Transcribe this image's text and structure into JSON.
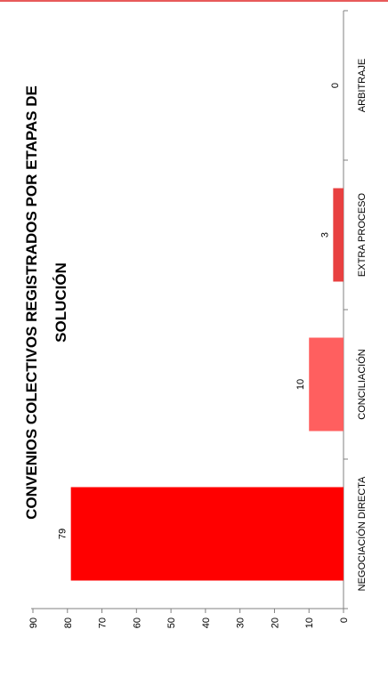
{
  "chart_data": {
    "type": "bar",
    "orientation": "rotated-90",
    "title_lines": [
      "CONVENIOS COLECTIVOS REGISTRADOS POR ETAPAS DE",
      "SOLUCIÓN"
    ],
    "categories": [
      "NEGOCIACIÓN DIRECTA",
      "CONCILIACIÓN",
      "EXTRA PROCESO",
      "ARBITRAJE"
    ],
    "values": [
      79,
      10,
      3,
      0
    ],
    "colors": [
      "#ff0000",
      "#ff5f5f",
      "#e84040",
      "#ff0000"
    ],
    "ylim": [
      0,
      90
    ],
    "yticks": [
      0,
      10,
      20,
      30,
      40,
      50,
      60,
      70,
      80,
      90
    ],
    "grid": false,
    "legend": "none"
  }
}
